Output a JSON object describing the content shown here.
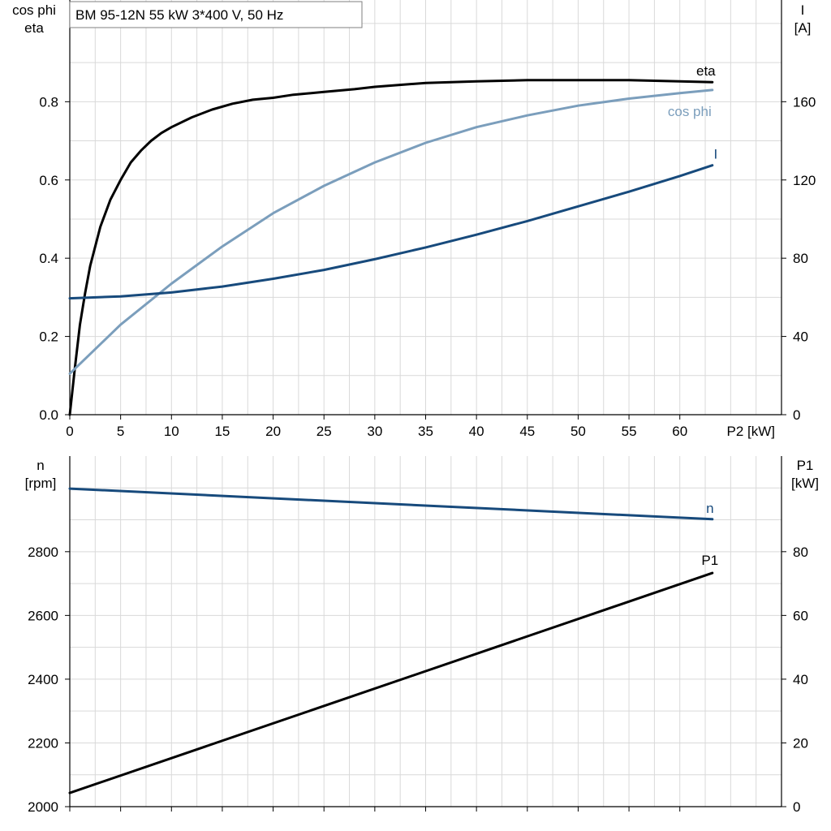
{
  "title": "BM 95-12N   55 kW   3*400 V, 50 Hz",
  "colors": {
    "eta": "#000000",
    "cos_phi": "#7b9ebc",
    "I": "#174a7c",
    "n": "#174a7c",
    "P1": "#000000"
  },
  "chart_data": [
    {
      "type": "line",
      "xlabel": "P2 [kW]",
      "ylabel_left": [
        "cos phi",
        "eta"
      ],
      "ylabel_right": [
        "I",
        "[A]"
      ],
      "xlim": [
        0,
        70
      ],
      "ylim_left": [
        0,
        1.06
      ],
      "ylim_right": [
        0,
        212
      ],
      "grid": true,
      "xticks": [
        0,
        5,
        10,
        15,
        20,
        25,
        30,
        35,
        40,
        45,
        50,
        55,
        60
      ],
      "yticks_left": [
        0.0,
        0.2,
        0.4,
        0.6,
        0.8
      ],
      "yticks_left_labels": [
        "0.0",
        "0.2",
        "0.4",
        "0.6",
        "0.8"
      ],
      "yticks_right": [
        0,
        40,
        80,
        120,
        160
      ],
      "series": [
        {
          "name": "eta",
          "axis": "left",
          "x": [
            0,
            0.5,
            1,
            1.5,
            2,
            3,
            4,
            5,
            6,
            7,
            8,
            9,
            10,
            12,
            14,
            16,
            18,
            20,
            22,
            25,
            28,
            30,
            35,
            40,
            45,
            50,
            55,
            60,
            63.2
          ],
          "y": [
            0.0,
            0.12,
            0.23,
            0.31,
            0.38,
            0.48,
            0.55,
            0.6,
            0.645,
            0.675,
            0.7,
            0.72,
            0.735,
            0.76,
            0.78,
            0.795,
            0.805,
            0.81,
            0.818,
            0.825,
            0.832,
            0.838,
            0.848,
            0.852,
            0.855,
            0.855,
            0.855,
            0.852,
            0.85
          ]
        },
        {
          "name": "cos phi",
          "axis": "left",
          "x": [
            0,
            5,
            10,
            15,
            20,
            25,
            30,
            35,
            40,
            45,
            50,
            55,
            60,
            63.2
          ],
          "y": [
            0.105,
            0.23,
            0.335,
            0.43,
            0.515,
            0.585,
            0.645,
            0.695,
            0.735,
            0.765,
            0.79,
            0.808,
            0.822,
            0.83
          ]
        },
        {
          "name": "I",
          "axis": "right",
          "x": [
            0,
            5,
            10,
            15,
            20,
            25,
            30,
            35,
            40,
            45,
            50,
            55,
            60,
            63.2
          ],
          "y": [
            59.5,
            60.5,
            62.5,
            65.5,
            69.5,
            74,
            79.5,
            85.5,
            92,
            99,
            106.5,
            114,
            122,
            127.5
          ]
        }
      ]
    },
    {
      "type": "line",
      "xlabel": "",
      "ylabel_left": [
        "n",
        "[rpm]"
      ],
      "ylabel_right": [
        "P1",
        "[kW]"
      ],
      "xlim": [
        0,
        70
      ],
      "ylim_left": [
        2000,
        3100
      ],
      "ylim_right": [
        0,
        110
      ],
      "grid": true,
      "yticks_left": [
        2000,
        2200,
        2400,
        2600,
        2800
      ],
      "yticks_right": [
        0,
        20,
        40,
        60,
        80
      ],
      "series": [
        {
          "name": "n",
          "axis": "left",
          "x": [
            0,
            63.2
          ],
          "y": [
            2998,
            2902
          ]
        },
        {
          "name": "P1",
          "axis": "right",
          "x": [
            0,
            63.2
          ],
          "y": [
            4.3,
            73.3
          ]
        }
      ]
    }
  ]
}
